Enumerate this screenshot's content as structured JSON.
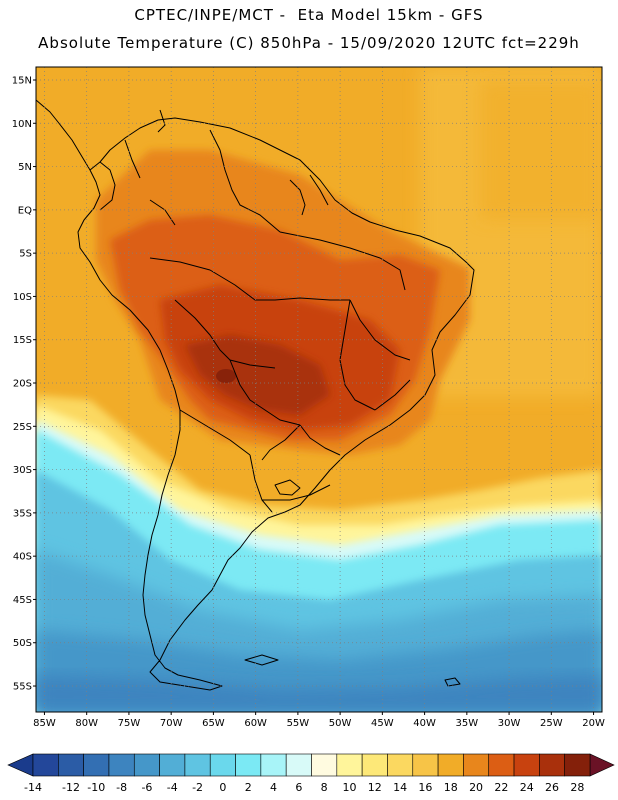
{
  "header": {
    "line1": "CPTEC/INPE/MCT -  Eta Model 15km - GFS",
    "line2": "Absolute Temperature (C) 850hPa - 15/09/2020 12UTC fct=229h"
  },
  "map": {
    "lat_labels": [
      "15N",
      "10N",
      "5N",
      "EQ",
      "5S",
      "10S",
      "15S",
      "20S",
      "25S",
      "30S",
      "35S",
      "40S",
      "45S",
      "50S",
      "55S"
    ],
    "lon_labels": [
      "85W",
      "80W",
      "75W",
      "70W",
      "65W",
      "60W",
      "55W",
      "50W",
      "45W",
      "40W",
      "35W",
      "30W",
      "25W",
      "20W"
    ],
    "lat_values": [
      15,
      10,
      5,
      0,
      -5,
      -10,
      -15,
      -20,
      -25,
      -30,
      -35,
      -40,
      -45,
      -50,
      -55
    ],
    "lon_values": [
      -85,
      -80,
      -75,
      -70,
      -65,
      -60,
      -55,
      -50,
      -45,
      -40,
      -35,
      -30,
      -25,
      -20
    ],
    "lat_range": [
      -58,
      16.5
    ],
    "lon_range": [
      -86,
      -19
    ],
    "grid": "dotted"
  },
  "colorbar": {
    "labels": [
      "-14",
      "-12",
      "-10",
      "-8",
      "-6",
      "-4",
      "-2",
      "0",
      "2",
      "4",
      "6",
      "8",
      "10",
      "12",
      "14",
      "16",
      "18",
      "20",
      "22",
      "24",
      "26",
      "28"
    ],
    "colors": [
      "#23479a",
      "#2b5ca6",
      "#336fb3",
      "#3d84bf",
      "#4597c9",
      "#52aed6",
      "#5fc4e2",
      "#6ad8ec",
      "#7be9f4",
      "#a8f4f8",
      "#d8faf8",
      "#fffbe0",
      "#fff59b",
      "#fde878",
      "#fbd860",
      "#f7c447",
      "#f1ac28",
      "#e8861c",
      "#dc5e14",
      "#c8420f",
      "#a9300c",
      "#84200a"
    ],
    "under_color": "#1a3b8c",
    "over_color": "#6a1226"
  }
}
